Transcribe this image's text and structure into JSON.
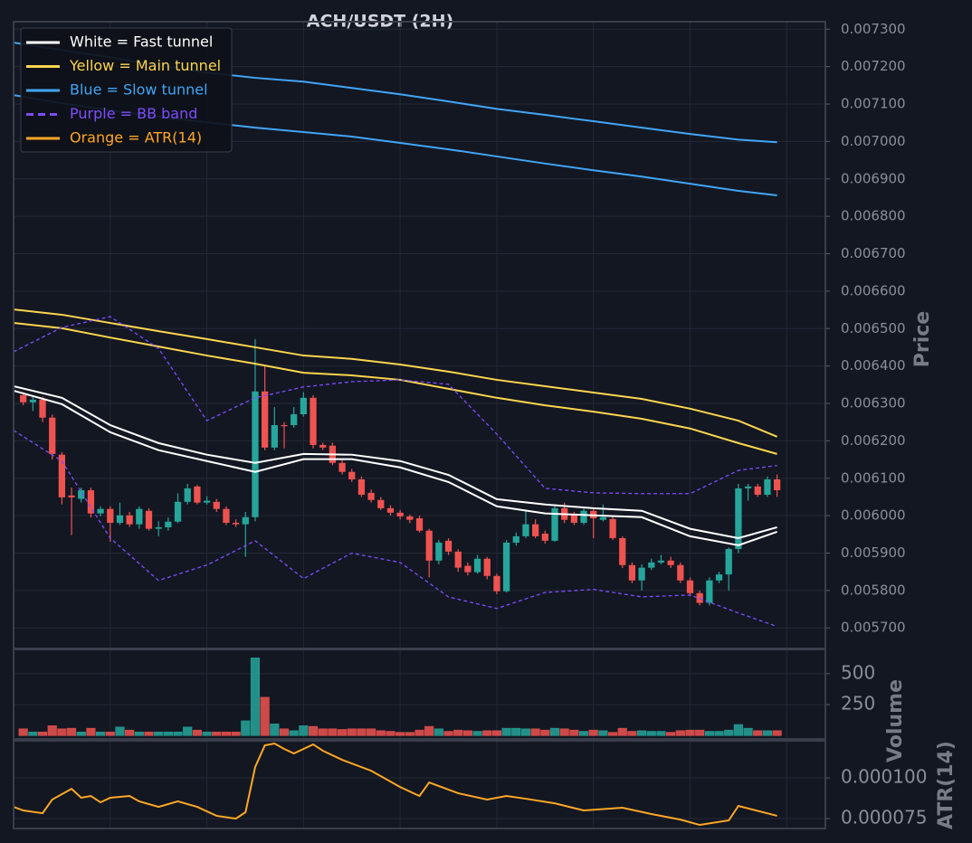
{
  "chart_data": [
    {
      "type": "candlestick",
      "title": "ACH/USDT (2H)",
      "ylabel": "Price",
      "xlim": [
        -1,
        83
      ],
      "xticks": [
        9,
        19,
        29,
        39,
        49,
        59,
        69,
        79
      ],
      "ylim": [
        0.005645,
        0.00732
      ],
      "yticks": [
        {
          "value": 0.0057,
          "label": "0.005700"
        },
        {
          "value": 0.0058,
          "label": "0.005800"
        },
        {
          "value": 0.0059,
          "label": "0.005900"
        },
        {
          "value": 0.006,
          "label": "0.006000"
        },
        {
          "value": 0.0061,
          "label": "0.006100"
        },
        {
          "value": 0.0062,
          "label": "0.006200"
        },
        {
          "value": 0.0063,
          "label": "0.006300"
        },
        {
          "value": 0.0064,
          "label": "0.006400"
        },
        {
          "value": 0.0065,
          "label": "0.006500"
        },
        {
          "value": 0.0066,
          "label": "0.006600"
        },
        {
          "value": 0.0067,
          "label": "0.006700"
        },
        {
          "value": 0.0068,
          "label": "0.006800"
        },
        {
          "value": 0.0069,
          "label": "0.006900"
        },
        {
          "value": 0.007,
          "label": "0.007000"
        },
        {
          "value": 0.0071,
          "label": "0.007100"
        },
        {
          "value": 0.0072,
          "label": "0.007200"
        },
        {
          "value": 0.0073,
          "label": "0.007300"
        }
      ],
      "grid": true,
      "legend": "upper left",
      "up_color": "#26a69a",
      "down_color": "#ef5350",
      "candles": {
        "open": [
          0.006322,
          0.006303,
          0.00631,
          0.006262,
          0.006163,
          0.006054,
          0.006045,
          0.006068,
          0.006006,
          0.006018,
          0.005981,
          0.006001,
          0.005977,
          0.006013,
          0.005965,
          0.005969,
          0.005984,
          0.006037,
          0.006078,
          0.006035,
          0.006037,
          0.006018,
          0.005981,
          0.005977,
          0.005996,
          0.006332,
          0.006182,
          0.006242,
          0.006242,
          0.006271,
          0.006315,
          0.006189,
          0.006187,
          0.006141,
          0.006117,
          0.006097,
          0.006061,
          0.006042,
          0.00602,
          0.006008,
          0.005998,
          0.005993,
          0.00596,
          0.00588,
          0.005933,
          0.005904,
          0.005866,
          0.005849,
          0.005885,
          0.005839,
          0.005798,
          0.005928,
          0.005945,
          0.005977,
          0.005952,
          0.005933,
          0.00602,
          0.006001,
          0.005981,
          0.006013,
          0.005989,
          0.005991,
          0.00594,
          0.005868,
          0.005827,
          0.005861,
          0.005875,
          0.00588,
          0.005868,
          0.005827,
          0.005793,
          0.005767,
          0.005827,
          0.005843,
          0.005911,
          0.006073,
          0.006078,
          0.006056,
          0.006097
        ],
        "high": [
          0.00633,
          0.006318,
          0.006318,
          0.00627,
          0.00617,
          0.006075,
          0.006075,
          0.006075,
          0.006025,
          0.006025,
          0.006035,
          0.00601,
          0.006025,
          0.00602,
          0.005985,
          0.005995,
          0.00606,
          0.006085,
          0.006082,
          0.006052,
          0.006045,
          0.006025,
          0.00599,
          0.00601,
          0.006472,
          0.0064,
          0.00629,
          0.00625,
          0.00629,
          0.00633,
          0.006322,
          0.006195,
          0.006195,
          0.00615,
          0.006125,
          0.006105,
          0.00607,
          0.00605,
          0.006028,
          0.006015,
          0.006003,
          0.006,
          0.005965,
          0.005935,
          0.00594,
          0.00591,
          0.005875,
          0.005895,
          0.00589,
          0.005845,
          0.005935,
          0.005955,
          0.006015,
          0.00599,
          0.00596,
          0.00603,
          0.006035,
          0.00601,
          0.00602,
          0.00602,
          0.00603,
          0.005998,
          0.005945,
          0.005875,
          0.00587,
          0.005885,
          0.005895,
          0.00589,
          0.005875,
          0.005835,
          0.0058,
          0.005835,
          0.00585,
          0.005915,
          0.006085,
          0.006085,
          0.006085,
          0.006105,
          0.00611
        ],
        "low": [
          0.006295,
          0.00628,
          0.00625,
          0.00615,
          0.00603,
          0.005948,
          0.006035,
          0.005995,
          0.005998,
          0.00593,
          0.005975,
          0.00597,
          0.005965,
          0.00596,
          0.005945,
          0.00596,
          0.00598,
          0.00603,
          0.00603,
          0.00603,
          0.00601,
          0.005975,
          0.00597,
          0.00589,
          0.005985,
          0.006175,
          0.006175,
          0.00618,
          0.006235,
          0.006265,
          0.00618,
          0.006175,
          0.006135,
          0.00611,
          0.00609,
          0.00605,
          0.006035,
          0.006015,
          0.006,
          0.00599,
          0.00598,
          0.005955,
          0.005835,
          0.00587,
          0.005895,
          0.00585,
          0.00584,
          0.005845,
          0.00583,
          0.00579,
          0.005795,
          0.00592,
          0.00594,
          0.00594,
          0.005925,
          0.00593,
          0.00598,
          0.005975,
          0.005975,
          0.00594,
          0.005985,
          0.005935,
          0.00586,
          0.00582,
          0.0058,
          0.005855,
          0.00587,
          0.00586,
          0.00582,
          0.005785,
          0.00576,
          0.00576,
          0.00582,
          0.0058,
          0.0059,
          0.00604,
          0.00605,
          0.00605,
          0.00605
        ],
        "close": [
          0.006303,
          0.00631,
          0.006262,
          0.006165,
          0.006049,
          0.006049,
          0.006068,
          0.006006,
          0.006018,
          0.005981,
          0.006001,
          0.005977,
          0.006018,
          0.005965,
          0.005969,
          0.005984,
          0.006037,
          0.006073,
          0.006035,
          0.00604,
          0.006018,
          0.005981,
          0.005977,
          0.005996,
          0.006332,
          0.006182,
          0.006242,
          0.00624,
          0.006271,
          0.006315,
          0.006189,
          0.006182,
          0.006141,
          0.006117,
          0.006097,
          0.006056,
          0.006042,
          0.00602,
          0.006008,
          0.005998,
          0.005989,
          0.00596,
          0.00588,
          0.005928,
          0.005904,
          0.005861,
          0.005849,
          0.005885,
          0.005839,
          0.005798,
          0.005928,
          0.005945,
          0.005977,
          0.005945,
          0.005933,
          0.00602,
          0.005989,
          0.005981,
          0.006013,
          0.005993,
          0.005996,
          0.00594,
          0.005868,
          0.005827,
          0.005861,
          0.005875,
          0.00588,
          0.005868,
          0.005827,
          0.005793,
          0.005767,
          0.005827,
          0.005843,
          0.005911,
          0.006073,
          0.006078,
          0.006056,
          0.006097,
          0.006068
        ]
      },
      "series": [
        {
          "name": "Blue = Slow tunnel",
          "color": "#42a5f5",
          "dash": false,
          "x": [
            -1,
            4,
            9,
            14,
            19,
            24,
            29,
            34,
            39,
            44,
            49,
            54,
            59,
            64,
            69,
            74,
            78
          ],
          "values": [
            [
              0.007264,
              0.007244,
              0.007225,
              0.007203,
              0.007184,
              0.00717,
              0.00716,
              0.007143,
              0.007126,
              0.007107,
              0.007087,
              0.007071,
              0.007054,
              0.007037,
              0.00702,
              0.007005,
              0.006998
            ],
            [
              0.007124,
              0.007102,
              0.007083,
              0.007066,
              0.007051,
              0.007037,
              0.007025,
              0.007013,
              0.006996,
              0.006979,
              0.00696,
              0.006941,
              0.006923,
              0.006906,
              0.006887,
              0.006868,
              0.006856
            ]
          ]
        },
        {
          "name": "Yellow = Main tunnel",
          "color": "#fdd54f",
          "dash": false,
          "x": [
            -1,
            4,
            9,
            14,
            19,
            24,
            29,
            34,
            39,
            44,
            49,
            54,
            59,
            64,
            69,
            74,
            78
          ],
          "values": [
            [
              0.006551,
              0.006537,
              0.006515,
              0.006493,
              0.006472,
              0.00645,
              0.006428,
              0.006419,
              0.006404,
              0.006385,
              0.006363,
              0.006346,
              0.006329,
              0.006312,
              0.006286,
              0.006254,
              0.006211
            ],
            [
              0.006515,
              0.006501,
              0.006476,
              0.006452,
              0.006428,
              0.006406,
              0.006382,
              0.006375,
              0.006363,
              0.006339,
              0.006315,
              0.006295,
              0.006278,
              0.006259,
              0.006233,
              0.006194,
              0.006165
            ]
          ]
        },
        {
          "name": "White = Fast tunnel",
          "color": "#ffffff",
          "dash": false,
          "x": [
            -1,
            4,
            9,
            14,
            19,
            24,
            29,
            34,
            39,
            44,
            49,
            54,
            59,
            64,
            69,
            74,
            78
          ],
          "values": [
            [
              0.006346,
              0.006315,
              0.006242,
              0.006194,
              0.006163,
              0.006141,
              0.006165,
              0.006163,
              0.006146,
              0.006109,
              0.006044,
              0.00603,
              0.00602,
              0.006013,
              0.005965,
              0.00594,
              0.005969
            ],
            [
              0.006334,
              0.006298,
              0.006223,
              0.006175,
              0.006146,
              0.006117,
              0.006151,
              0.006151,
              0.006129,
              0.00609,
              0.006025,
              0.006006,
              0.006001,
              0.005996,
              0.005945,
              0.005921,
              0.005957
            ]
          ]
        },
        {
          "name": "Purple = BB band",
          "color": "#7c4dff",
          "dash": true,
          "x": [
            -1,
            4,
            9,
            14,
            19,
            24,
            29,
            34,
            39,
            44,
            49,
            54,
            59,
            64,
            69,
            74,
            78
          ],
          "values": [
            [
              0.006438,
              0.006503,
              0.006532,
              0.006447,
              0.006254,
              0.006315,
              0.006344,
              0.006358,
              0.006363,
              0.006351,
              0.006218,
              0.006073,
              0.006061,
              0.006059,
              0.006059,
              0.006121,
              0.006134
            ],
            [
              0.006228,
              0.006146,
              0.00594,
              0.005827,
              0.005868,
              0.005933,
              0.005832,
              0.0059,
              0.005875,
              0.005783,
              0.005752,
              0.005795,
              0.005803,
              0.005783,
              0.005788,
              0.00574,
              0.005704
            ]
          ]
        }
      ]
    },
    {
      "type": "bar",
      "ylabel": "Volume",
      "xlim": [
        -1,
        83
      ],
      "xticks": [
        9,
        19,
        29,
        39,
        49,
        59,
        69,
        79
      ],
      "ylim": [
        -27,
        696
      ],
      "yticks": [
        250,
        500
      ],
      "grid": true,
      "values": [
        55,
        30,
        30,
        80,
        55,
        60,
        30,
        60,
        30,
        30,
        70,
        45,
        30,
        30,
        30,
        30,
        30,
        70,
        45,
        30,
        30,
        30,
        30,
        120,
        628,
        310,
        95,
        55,
        40,
        80,
        75,
        55,
        55,
        50,
        55,
        55,
        55,
        40,
        35,
        27,
        27,
        45,
        75,
        55,
        35,
        45,
        40,
        35,
        40,
        40,
        60,
        60,
        55,
        55,
        45,
        60,
        55,
        45,
        35,
        45,
        40,
        27,
        60,
        35,
        40,
        35,
        35,
        27,
        40,
        45,
        45,
        35,
        35,
        45,
        90,
        60,
        40,
        40,
        40
      ]
    },
    {
      "type": "line",
      "ylabel": "ATR(14)",
      "xlim": [
        -1,
        83
      ],
      "xticks": [
        9,
        19,
        29,
        39,
        49,
        59,
        69,
        79
      ],
      "ylim": [
        6.89e-05,
        0.0001228
      ],
      "yticks": [
        {
          "value": 7.5e-05,
          "label": "0.000075"
        },
        {
          "value": 0.0001,
          "label": "0.000100"
        }
      ],
      "grid": true,
      "series": [
        {
          "name": "Orange = ATR(14)",
          "color": "#ffa726",
          "dash": false,
          "x": [
            -1,
            0,
            2,
            3,
            4,
            5,
            6,
            7,
            8,
            9,
            11,
            12,
            14,
            16,
            18,
            20,
            22,
            23,
            24,
            25,
            26,
            27,
            28,
            30,
            31,
            33,
            36,
            39,
            41,
            42,
            45,
            48,
            50,
            52,
            55,
            58,
            62,
            65,
            68,
            70,
            73,
            74,
            78
          ],
          "values": [
            [
              8.22e-05,
              8e-05,
              7.83e-05,
              8.67e-05,
              9e-05,
              9.33e-05,
              8.78e-05,
              8.89e-05,
              8.5e-05,
              8.78e-05,
              8.89e-05,
              8.56e-05,
              8.22e-05,
              8.56e-05,
              8.22e-05,
              7.67e-05,
              7.5e-05,
              7.89e-05,
              0.0001067,
              0.00012,
              0.0001211,
              0.0001178,
              0.000115,
              0.0001206,
              0.0001167,
              0.0001111,
              0.0001044,
              9.44e-05,
              8.89e-05,
              9.72e-05,
              9.06e-05,
              8.67e-05,
              8.89e-05,
              8.72e-05,
              8.44e-05,
              8e-05,
              8.17e-05,
              7.78e-05,
              7.44e-05,
              7.11e-05,
              7.39e-05,
              8.28e-05,
              7.67e-05
            ]
          ]
        }
      ]
    }
  ]
}
